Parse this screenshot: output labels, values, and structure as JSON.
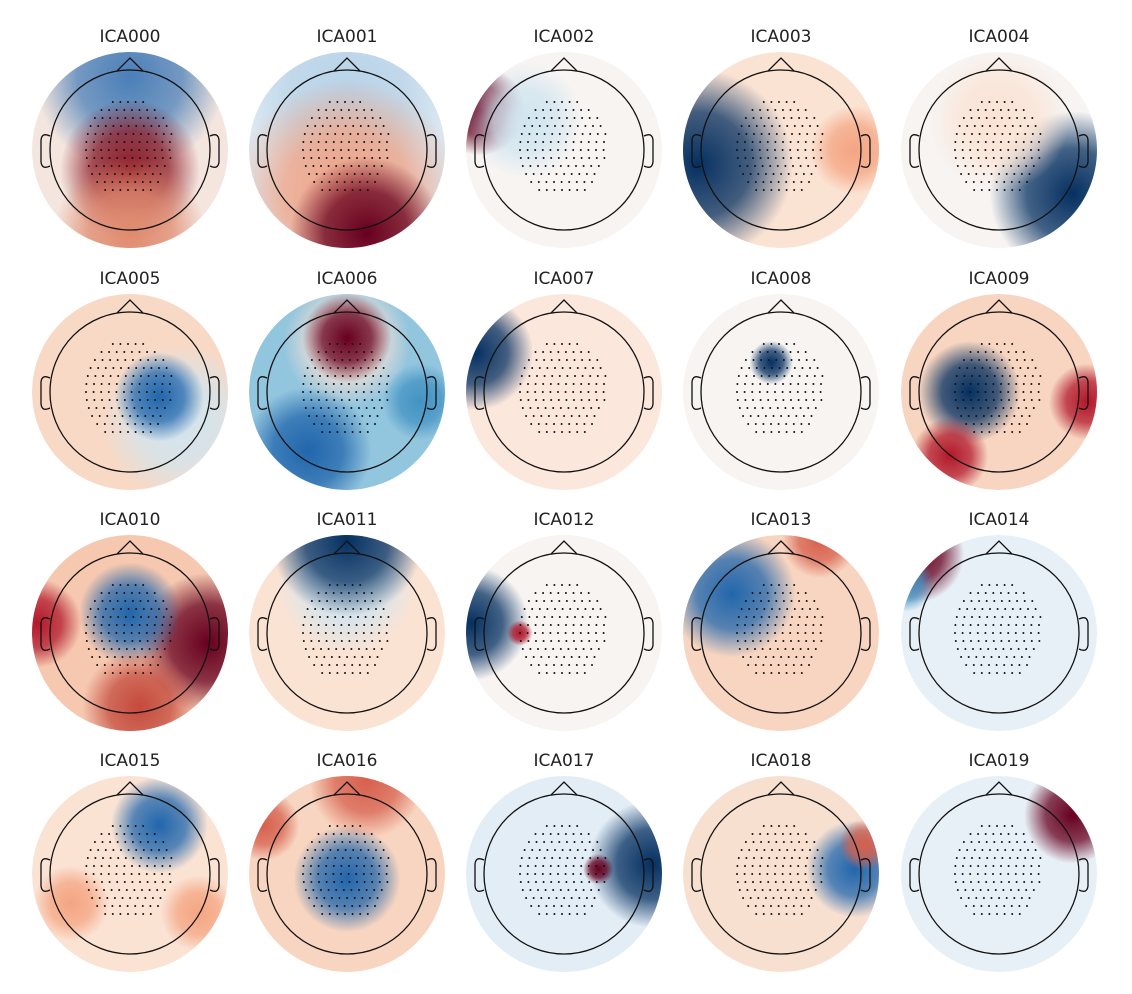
{
  "components": [
    {
      "title": "ICA000"
    },
    {
      "title": "ICA001"
    },
    {
      "title": "ICA002"
    },
    {
      "title": "ICA003"
    },
    {
      "title": "ICA004"
    },
    {
      "title": "ICA005"
    },
    {
      "title": "ICA006"
    },
    {
      "title": "ICA007"
    },
    {
      "title": "ICA008"
    },
    {
      "title": "ICA009"
    },
    {
      "title": "ICA010"
    },
    {
      "title": "ICA011"
    },
    {
      "title": "ICA012"
    },
    {
      "title": "ICA013"
    },
    {
      "title": "ICA014"
    },
    {
      "title": "ICA015"
    },
    {
      "title": "ICA016"
    },
    {
      "title": "ICA017"
    },
    {
      "title": "ICA018"
    },
    {
      "title": "ICA019"
    }
  ]
}
